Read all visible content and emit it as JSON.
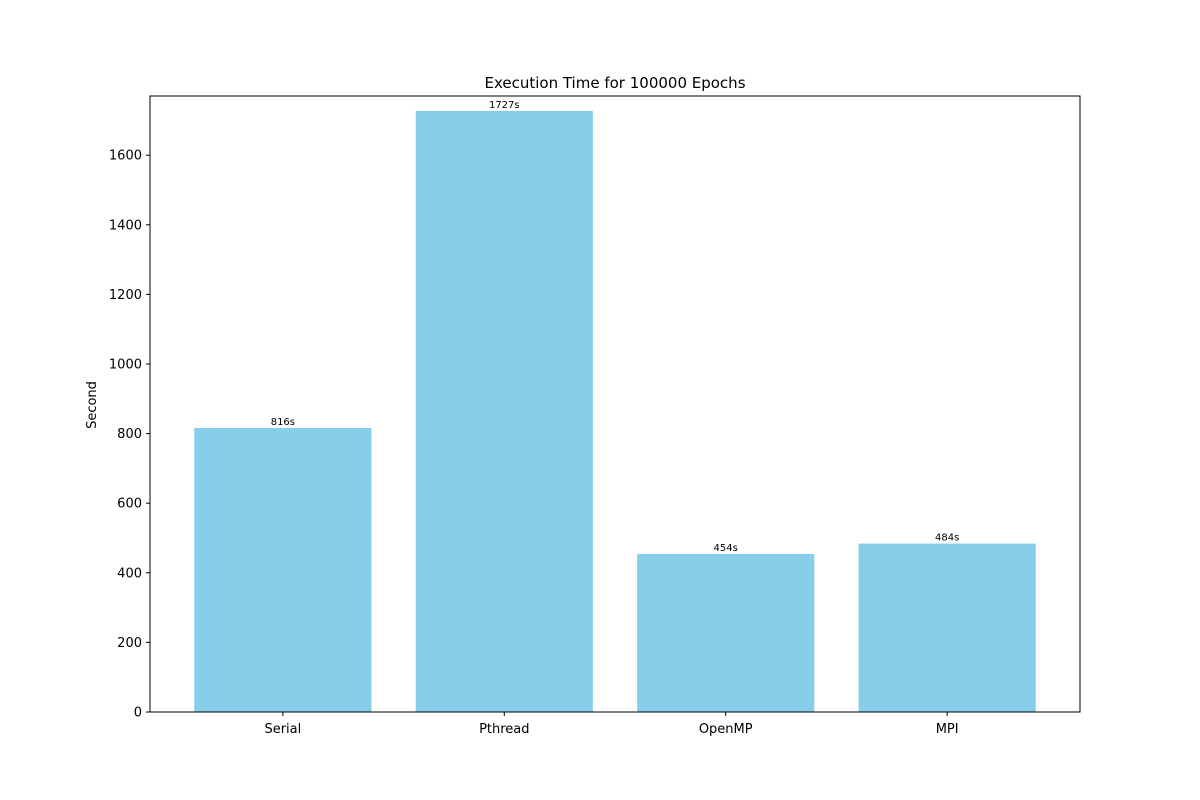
{
  "chart_data": {
    "type": "bar",
    "title": "Execution Time for 100000 Epochs",
    "xlabel": "",
    "ylabel": "Second",
    "categories": [
      "Serial",
      "Pthread",
      "OpenMP",
      "MPI"
    ],
    "values": [
      816,
      1727,
      454,
      484
    ],
    "data_labels": [
      "816s",
      "1727s",
      "454s",
      "484s"
    ],
    "ylim": [
      0,
      1770
    ],
    "yticks": [
      0,
      200,
      400,
      600,
      800,
      1000,
      1200,
      1400,
      1600
    ],
    "ytick_labels": [
      "0",
      "200",
      "400",
      "600",
      "800",
      "1000",
      "1200",
      "1400",
      "1600"
    ],
    "bar_color": "#87CEEB",
    "grid": false,
    "legend": "none"
  }
}
